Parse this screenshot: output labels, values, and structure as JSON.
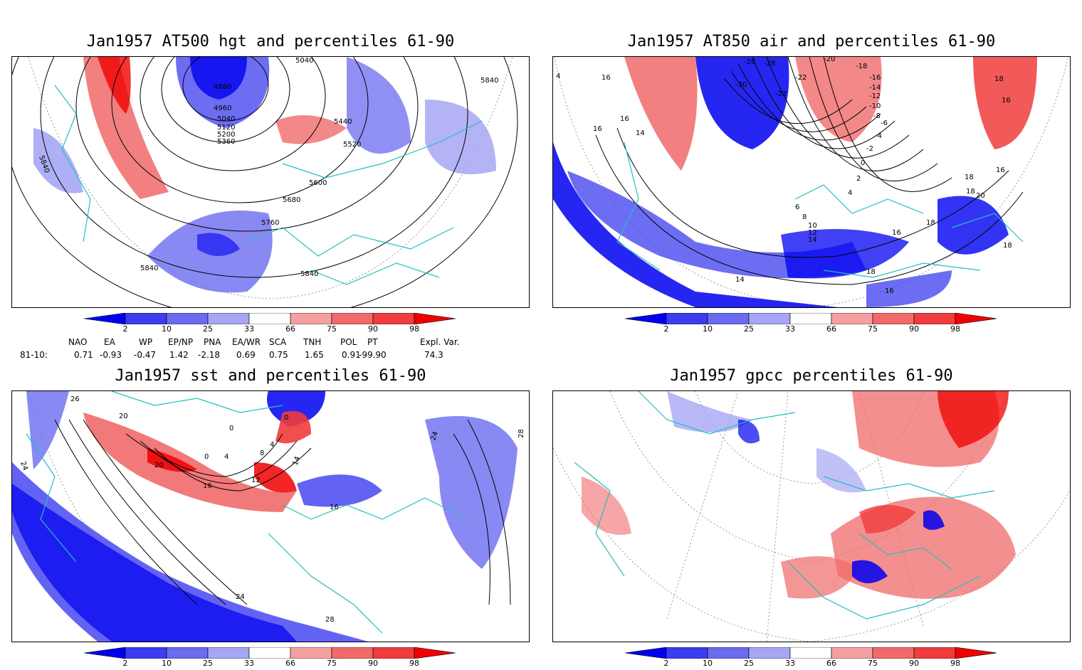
{
  "panels": [
    {
      "title": "Jan1957 AT500 hgt and percentiles 61-90",
      "contour_labels": [
        "5040",
        "4880",
        "4960",
        "5040",
        "5120",
        "5200",
        "5360",
        "5440",
        "5520",
        "5600",
        "5680",
        "5760",
        "5840",
        "5840",
        "5840",
        "5840"
      ]
    },
    {
      "title": "Jan1957 AT850 air and percentiles 61-90",
      "contour_labels": [
        "-28",
        "-28",
        "-30",
        "-22",
        "-22",
        "-20",
        "-18",
        "-16",
        "-14",
        "-12",
        "-10",
        "-8",
        "-6",
        "-4",
        "-2",
        "0",
        "2",
        "4",
        "6",
        "8",
        "10",
        "12",
        "14",
        "16",
        "16",
        "14",
        "16",
        "18",
        "16",
        "18",
        "18",
        "16",
        "20",
        "18",
        "18",
        "16",
        "18",
        "14",
        "16",
        "4"
      ]
    },
    {
      "title": "Jan1957 sst and percentiles 61-90",
      "contour_labels": [
        "26",
        "20",
        "24",
        "0",
        "0",
        "4",
        "8",
        "4",
        "20",
        "16",
        "12",
        "16",
        "24",
        "28",
        "24",
        "28",
        "0",
        "14"
      ]
    },
    {
      "title": "Jan1957 gpcc percentiles 61-90",
      "contour_labels": []
    }
  ],
  "colorbar": {
    "labels": [
      "2",
      "10",
      "25",
      "33",
      "66",
      "75",
      "90",
      "98"
    ],
    "colors": [
      "#0000f0",
      "#3c3cf0",
      "#6b6bf0",
      "#a6a6f5",
      "#ffffff",
      "#f5a0a0",
      "#f06a6a",
      "#f03c3c",
      "#f00000"
    ]
  },
  "indices": {
    "headers": [
      "NAO",
      "EA",
      "WP",
      "EP/NP",
      "PNA",
      "EA/WR",
      "SCA",
      "TNH",
      "POL",
      "PT",
      "Expl. Var."
    ],
    "row_label": "81-10:",
    "values": [
      "0.71",
      "-0.93",
      "-0.47",
      "1.42",
      "-2.18",
      "0.69",
      "0.75",
      "1.65",
      "0.91",
      "-99.90",
      "74.3"
    ]
  },
  "style": {
    "coast_color": "#20c0c0",
    "contour_color": "#000000"
  }
}
